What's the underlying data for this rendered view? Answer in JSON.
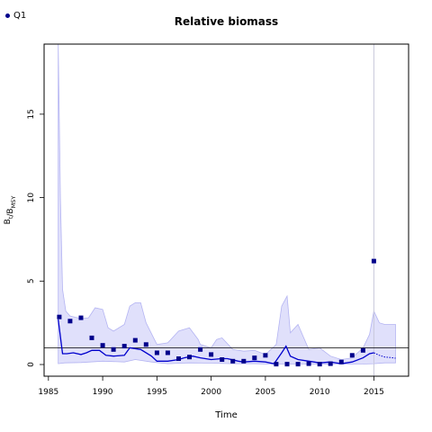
{
  "chart_data": {
    "type": "line",
    "title": "Relative biomass",
    "xlabel": "Time",
    "ylabel": "B_t/B_MSY",
    "xlim": [
      1984.6,
      2018.2
    ],
    "ylim": [
      -0.7,
      19.2
    ],
    "x_ticks": [
      1985,
      1990,
      1995,
      2000,
      2005,
      2010,
      2015
    ],
    "y_ticks": [
      0,
      5,
      10,
      15
    ],
    "reference_line_y": 1,
    "vertical_line_x": 2015,
    "legend": {
      "position": "top-left",
      "entries": [
        {
          "label": "Q1",
          "color": "#00008b"
        }
      ]
    },
    "series": [
      {
        "name": "Q1",
        "kind": "observed-index",
        "points": [
          [
            1986,
            2.85
          ],
          [
            1987,
            2.6
          ],
          [
            1988,
            2.8
          ],
          [
            1989,
            1.6
          ],
          [
            1990,
            1.15
          ],
          [
            1991,
            0.9
          ],
          [
            1992,
            1.1
          ],
          [
            1993,
            1.45
          ],
          [
            1994,
            1.2
          ],
          [
            1995,
            0.7
          ],
          [
            1996,
            0.7
          ],
          [
            1997,
            0.35
          ],
          [
            1998,
            0.45
          ],
          [
            1999,
            0.9
          ],
          [
            2000,
            0.6
          ],
          [
            2001,
            0.3
          ],
          [
            2002,
            0.2
          ],
          [
            2003,
            0.2
          ],
          [
            2004,
            0.4
          ],
          [
            2005,
            0.55
          ],
          [
            2006,
            0.02
          ],
          [
            2007,
            0.02
          ],
          [
            2008,
            0.02
          ],
          [
            2009,
            0.05
          ],
          [
            2010,
            0.02
          ],
          [
            2011,
            0.05
          ],
          [
            2012,
            0.15
          ],
          [
            2013,
            0.55
          ],
          [
            2014,
            0.85
          ],
          [
            2015,
            6.2
          ]
        ]
      },
      {
        "kind": "estimate",
        "x": [
          1985.9,
          1986.3,
          1986.7,
          1987.3,
          1988,
          1988.5,
          1989,
          1989.7,
          1990.3,
          1991,
          1992,
          1992.5,
          1993.5,
          1994.5,
          1995,
          1996,
          1997,
          1997.5,
          1998.3,
          1999,
          2000,
          2001,
          2001.5,
          2002.5,
          2003,
          2004,
          2005,
          2005.8,
          2006.5,
          2006.9,
          2007.3,
          2008,
          2009,
          2010,
          2011,
          2012,
          2013,
          2014,
          2014.6,
          2015
        ],
        "y": [
          2.7,
          0.65,
          0.65,
          0.7,
          0.6,
          0.7,
          0.85,
          0.85,
          0.55,
          0.5,
          0.55,
          1.0,
          0.9,
          0.5,
          0.2,
          0.2,
          0.3,
          0.4,
          0.5,
          0.4,
          0.3,
          0.35,
          0.35,
          0.2,
          0.15,
          0.2,
          0.15,
          0.05,
          0.7,
          1.1,
          0.5,
          0.3,
          0.2,
          0.1,
          0.15,
          0.05,
          0.15,
          0.4,
          0.65,
          0.7
        ]
      },
      {
        "kind": "projection",
        "x": [
          2015,
          2015.5,
          2016,
          2016.5,
          2017
        ],
        "y": [
          0.7,
          0.55,
          0.45,
          0.42,
          0.38
        ]
      },
      {
        "kind": "confidence-upper",
        "x": [
          1985.9,
          1986.1,
          1986.3,
          1986.6,
          1987,
          1988,
          1988.7,
          1989.3,
          1990,
          1990.5,
          1991,
          1992,
          1992.5,
          1993,
          1993.5,
          1994,
          1995,
          1996,
          1997,
          1998,
          1998.8,
          1999,
          2000,
          2000.5,
          2001,
          2002,
          2003,
          2004,
          2005,
          2006,
          2006.5,
          2007,
          2007.3,
          2008,
          2009,
          2010,
          2011,
          2012,
          2013,
          2014,
          2014.6,
          2015,
          2015.5,
          2016,
          2017
        ],
        "y": [
          19.2,
          10,
          4.5,
          3.2,
          2.9,
          2.75,
          2.8,
          3.4,
          3.3,
          2.2,
          2.0,
          2.4,
          3.5,
          3.7,
          3.7,
          2.5,
          1.2,
          1.3,
          2.0,
          2.2,
          1.5,
          1.2,
          1.0,
          1.5,
          1.6,
          0.9,
          0.8,
          0.85,
          0.6,
          1.2,
          3.5,
          4.1,
          1.9,
          2.4,
          0.9,
          1.0,
          0.5,
          0.3,
          0.4,
          1.0,
          1.8,
          3.2,
          2.5,
          2.4,
          2.4
        ]
      },
      {
        "kind": "confidence-lower",
        "x": [
          1985.9,
          1986.5,
          1988,
          1990,
          1992,
          1993,
          1994.5,
          1996,
          1998,
          2000,
          2002,
          2004,
          2006,
          2008,
          2010,
          2012,
          2014,
          2015,
          2016,
          2017
        ],
        "y": [
          0.05,
          0.1,
          0.12,
          0.2,
          0.15,
          0.3,
          0.15,
          0.05,
          0.1,
          0.08,
          0.05,
          0.05,
          0.02,
          0.02,
          0.02,
          0.02,
          0.03,
          0.05,
          0.1,
          0.1
        ]
      }
    ]
  }
}
